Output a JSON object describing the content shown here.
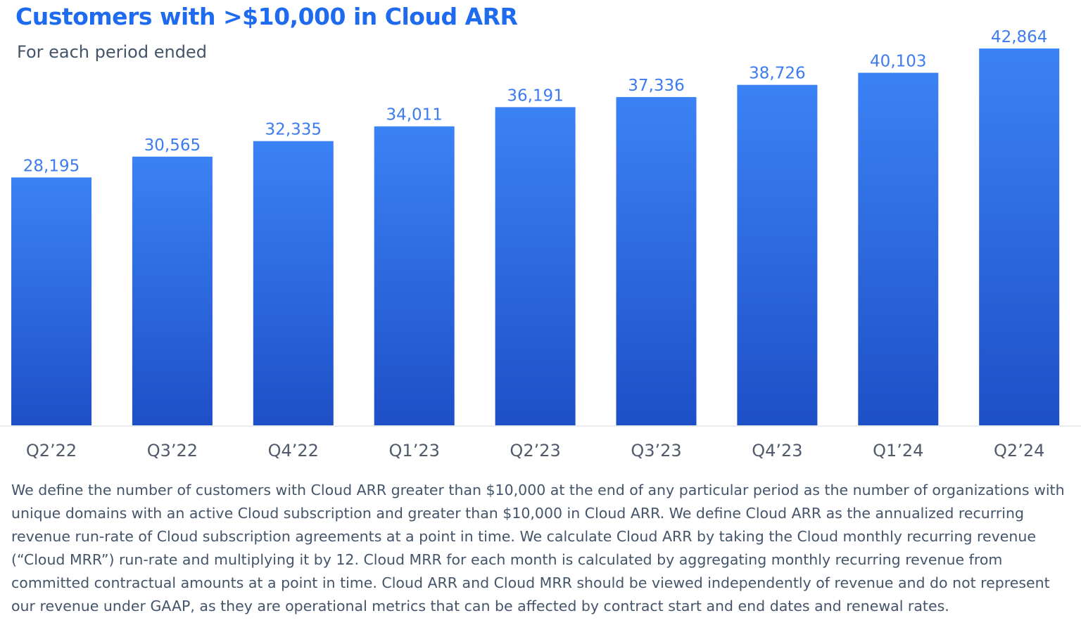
{
  "chart_data": {
    "type": "bar",
    "title": "Customers with >$10,000 in Cloud ARR",
    "subtitle": "For each period ended",
    "categories": [
      "Q2’22",
      "Q3’22",
      "Q4’22",
      "Q1’23",
      "Q2’23",
      "Q3’23",
      "Q4’23",
      "Q1’24",
      "Q2’24"
    ],
    "values": [
      28195,
      30565,
      32335,
      34011,
      36191,
      37336,
      38726,
      40103,
      42864
    ],
    "value_labels": [
      "28,195",
      "30,565",
      "32,335",
      "34,011",
      "36,191",
      "37,336",
      "38,726",
      "40,103",
      "42,864"
    ],
    "xlabel": "",
    "ylabel": "",
    "ylim": [
      0,
      42864
    ],
    "grid": false,
    "colors": {
      "bar_top": "#3b82f6",
      "bar_bottom": "#1e4fc7",
      "label": "#3d7bf0",
      "title": "#1f6bf0"
    }
  },
  "footnote": "We define the number of customers with Cloud ARR greater than $10,000 at the end of any particular period as the number of organizations with unique domains with an active Cloud subscription and greater than $10,000 in Cloud ARR. We define Cloud ARR as the annualized recurring revenue run-rate of Cloud subscription agreements at a point in time. We calculate Cloud ARR by taking the Cloud monthly recurring revenue (“Cloud MRR”) run-rate and multiplying it by 12. Cloud MRR for each month is calculated by aggregating monthly recurring revenue from committed contractual amounts at a point in time. Cloud ARR and Cloud MRR should be viewed independently of revenue and do not represent our revenue under GAAP, as they are operational metrics that can be affected by contract start and end dates and renewal rates."
}
